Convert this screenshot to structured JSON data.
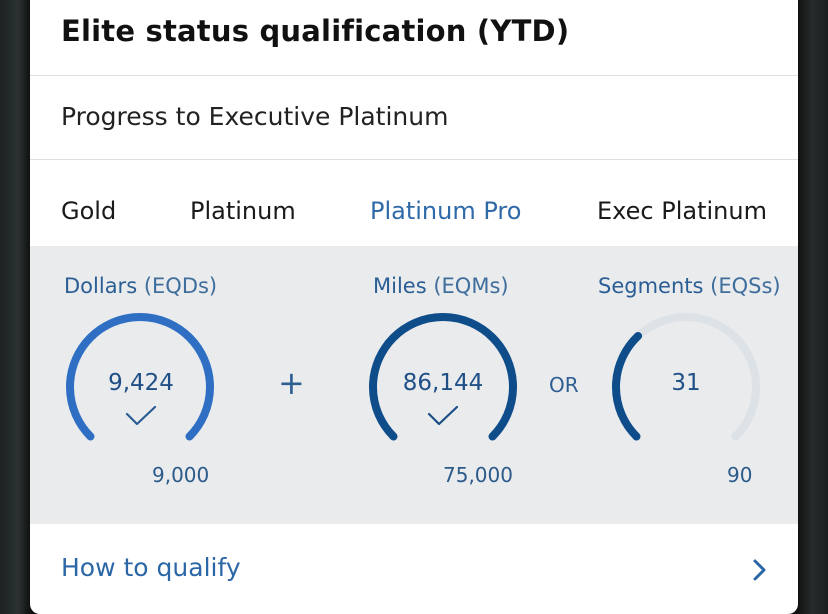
{
  "card": {
    "title": "Elite status qualification (YTD)",
    "subtitle": "Progress to Executive Platinum"
  },
  "tiers": [
    {
      "label": "Gold",
      "active": false
    },
    {
      "label": "Platinum",
      "active": false
    },
    {
      "label": "Platinum Pro",
      "active": true
    },
    {
      "label": "Exec Platinum",
      "active": false
    }
  ],
  "metrics": [
    {
      "name": "Dollars",
      "unit": "(EQDs)",
      "value": "9,424",
      "target": "9,000",
      "progress": 1.0,
      "met": true,
      "icon": "checkmark-icon"
    },
    {
      "name": "Miles",
      "unit": "(EQMs)",
      "value": "86,144",
      "target": "75,000",
      "progress": 1.0,
      "met": true,
      "icon": "checkmark-icon"
    },
    {
      "name": "Segments",
      "unit": "(EQSs)",
      "value": "31",
      "target": "90",
      "progress": 0.34,
      "met": false
    }
  ],
  "operators": {
    "plus": "+",
    "or": "OR"
  },
  "footer": {
    "link_label": "How to qualify",
    "icon": "chevron-right-icon"
  },
  "colors": {
    "dollars_arc": "#2e6fc4",
    "miles_arc": "#0f4c8a",
    "segments_arc": "#0f4c8a",
    "track": "#dde2e6",
    "panel_bg": "#e9ebed",
    "active_tier": "#2f6aa8"
  }
}
